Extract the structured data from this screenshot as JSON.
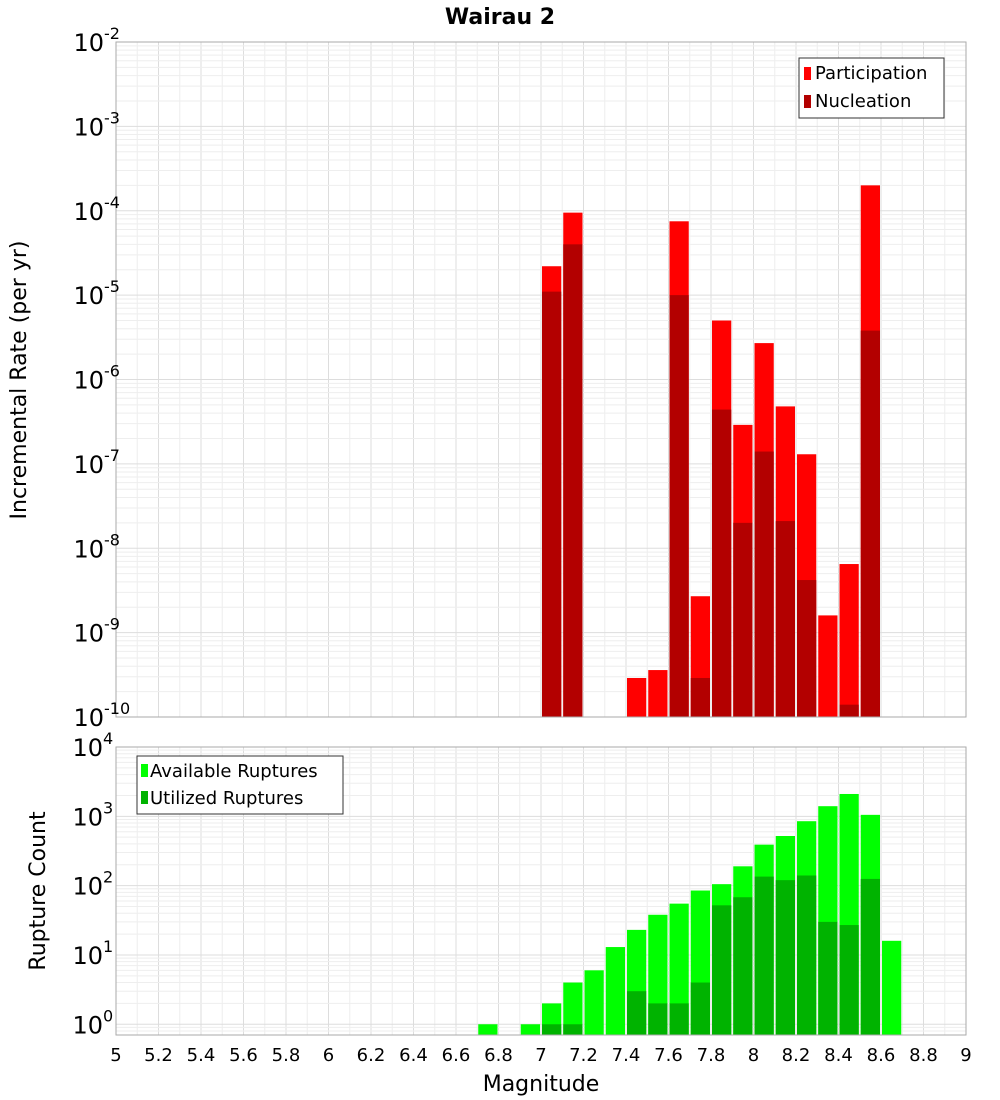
{
  "chart_data": [
    {
      "type": "bar",
      "title": "Wairau 2",
      "xlabel": "",
      "ylabel": "Incremental Rate (per yr)",
      "yscale": "log",
      "ylim": [
        1e-10,
        0.01
      ],
      "xlim": [
        5,
        9
      ],
      "grid": true,
      "legend_position": "top-right",
      "bar_width": 0.1,
      "series": [
        {
          "name": "Participation",
          "color": "#ff0000",
          "x": [
            7.05,
            7.15,
            7.45,
            7.55,
            7.65,
            7.75,
            7.85,
            7.95,
            8.05,
            8.15,
            8.25,
            8.35,
            8.45,
            8.55
          ],
          "values": [
            2.2e-05,
            9.5e-05,
            2.9e-10,
            3.6e-10,
            7.5e-05,
            2.7e-09,
            5e-06,
            2.9e-07,
            2.7e-06,
            4.8e-07,
            1.3e-07,
            1.6e-09,
            6.5e-09,
            0.0002
          ]
        },
        {
          "name": "Nucleation",
          "color": "#b30000",
          "x": [
            7.05,
            7.15,
            7.65,
            7.75,
            7.85,
            7.95,
            8.05,
            8.15,
            8.25,
            8.45,
            8.55
          ],
          "values": [
            1.1e-05,
            4e-05,
            1e-05,
            2.9e-10,
            4.4e-07,
            2e-08,
            1.4e-07,
            2.1e-08,
            4.2e-09,
            1.4e-10,
            3.8e-06
          ]
        }
      ]
    },
    {
      "type": "bar",
      "title": "",
      "xlabel": "Magnitude",
      "ylabel": "Rupture Count",
      "yscale": "log",
      "ylim": [
        0.7,
        10000
      ],
      "xlim": [
        5,
        9
      ],
      "grid": true,
      "legend_position": "top-left",
      "bar_width": 0.1,
      "series": [
        {
          "name": "Available Ruptures",
          "color": "#00ff00",
          "x": [
            6.75,
            6.95,
            7.05,
            7.15,
            7.25,
            7.35,
            7.45,
            7.55,
            7.65,
            7.75,
            7.85,
            7.95,
            8.05,
            8.15,
            8.25,
            8.35,
            8.45,
            8.55,
            8.65
          ],
          "values": [
            1,
            1,
            2,
            4,
            6,
            13,
            23,
            38,
            55,
            85,
            105,
            190,
            390,
            520,
            850,
            1400,
            2100,
            1050,
            16
          ]
        },
        {
          "name": "Utilized Ruptures",
          "color": "#00b300",
          "x": [
            7.05,
            7.15,
            7.45,
            7.55,
            7.65,
            7.75,
            7.85,
            7.95,
            8.05,
            8.15,
            8.25,
            8.35,
            8.45,
            8.55
          ],
          "values": [
            1,
            1,
            3,
            2,
            2,
            4,
            52,
            68,
            135,
            120,
            140,
            30,
            27,
            125
          ]
        }
      ],
      "x_ticks": [
        "5",
        "5.2",
        "5.4",
        "5.6",
        "5.8",
        "6",
        "6.2",
        "6.4",
        "6.6",
        "6.8",
        "7",
        "7.2",
        "7.4",
        "7.6",
        "7.8",
        "8",
        "8.2",
        "8.4",
        "8.6",
        "8.8",
        "9"
      ]
    }
  ],
  "top_ticks": [
    {
      "base": "10",
      "exp": "-2"
    },
    {
      "base": "10",
      "exp": "-3"
    },
    {
      "base": "10",
      "exp": "-4"
    },
    {
      "base": "10",
      "exp": "-5"
    },
    {
      "base": "10",
      "exp": "-6"
    },
    {
      "base": "10",
      "exp": "-7"
    },
    {
      "base": "10",
      "exp": "-8"
    },
    {
      "base": "10",
      "exp": "-9"
    },
    {
      "base": "10",
      "exp": "-10"
    }
  ],
  "bottom_ticks": [
    {
      "base": "10",
      "exp": "4"
    },
    {
      "base": "10",
      "exp": "3"
    },
    {
      "base": "10",
      "exp": "2"
    },
    {
      "base": "10",
      "exp": "1"
    },
    {
      "base": "10",
      "exp": "0"
    }
  ]
}
